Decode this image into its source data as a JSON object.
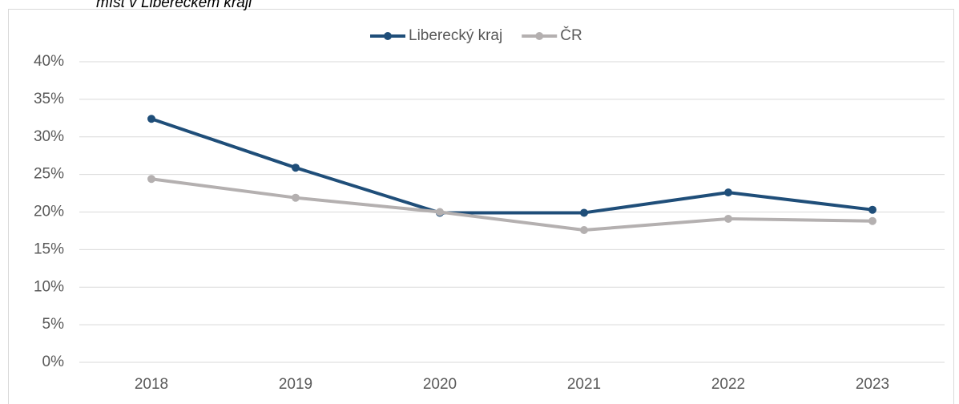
{
  "chart_data": {
    "type": "line",
    "title": "míst v Libereckém kraji",
    "categories": [
      "2018",
      "2019",
      "2020",
      "2021",
      "2022",
      "2023"
    ],
    "series": [
      {
        "name": "Liberecký kraj",
        "color": "#1f4e79",
        "values": [
          32.4,
          25.9,
          19.9,
          19.9,
          22.6,
          20.3
        ]
      },
      {
        "name": "ČR",
        "color": "#b4b0b0",
        "values": [
          24.4,
          21.9,
          20.0,
          17.6,
          19.1,
          18.8
        ]
      }
    ],
    "ylim": [
      0,
      40
    ],
    "yticks": [
      {
        "value": 0,
        "label": "0%"
      },
      {
        "value": 5,
        "label": "5%"
      },
      {
        "value": 10,
        "label": "10%"
      },
      {
        "value": 15,
        "label": "15%"
      },
      {
        "value": 20,
        "label": "20%"
      },
      {
        "value": 25,
        "label": "25%"
      },
      {
        "value": 30,
        "label": "30%"
      },
      {
        "value": 35,
        "label": "35%"
      },
      {
        "value": 40,
        "label": "40%"
      }
    ],
    "grid": true,
    "legend": "top"
  }
}
